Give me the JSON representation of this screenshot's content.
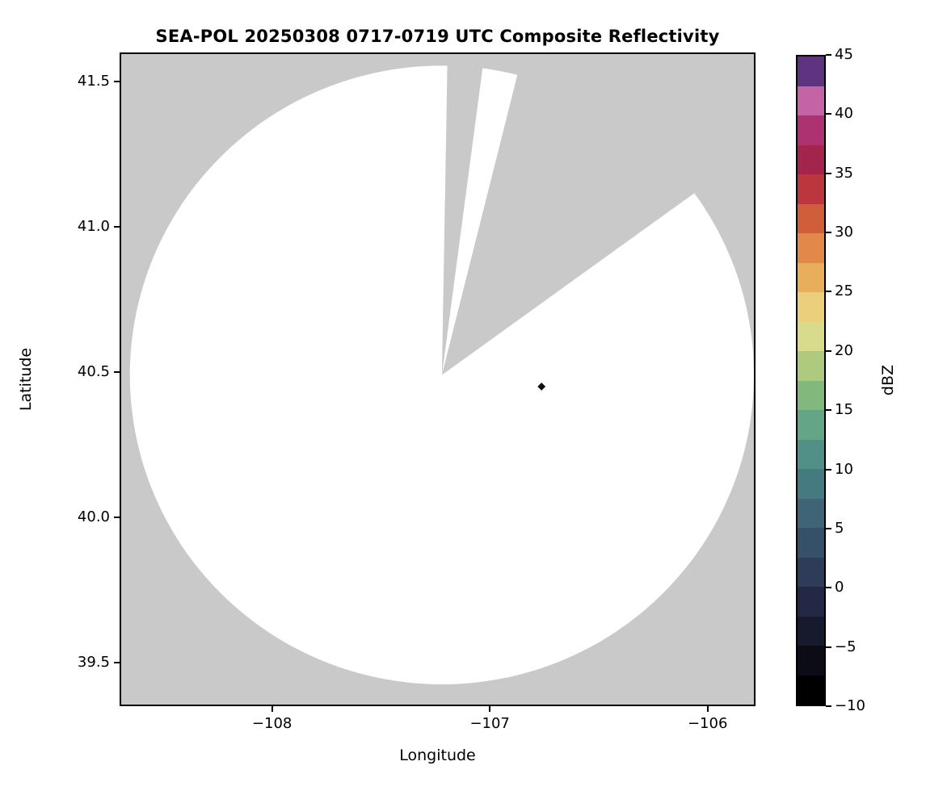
{
  "chart_data": {
    "type": "radar_ppi_map",
    "title": "SEA-POL 20250308 0717-0719 UTC Composite Reflectivity",
    "xlabel": "Longitude",
    "ylabel": "Latitude",
    "xlim": [
      -108.7,
      -105.78
    ],
    "ylim": [
      39.35,
      41.6
    ],
    "xticks": [
      -108,
      -107,
      -106
    ],
    "xtick_labels": [
      "−108",
      "−107",
      "−106"
    ],
    "yticks": [
      39.5,
      40.0,
      40.5,
      41.0,
      41.5
    ],
    "ytick_labels": [
      "39.5",
      "40.0",
      "40.5",
      "41.0",
      "41.5"
    ],
    "grid": false,
    "background_nodata_color": "#c9c9c9",
    "coverage": {
      "description": "white circular radar coverage area with two gray beam-blocked sectors toward the north and northeast",
      "center_lon": -107.22,
      "center_lat": 40.49,
      "radius_deg_lon": 1.44,
      "radius_deg_lat": 1.07,
      "fill_color": "#ffffff",
      "blocked_sectors_az_deg": [
        [
          1,
          7.5
        ],
        [
          14,
          54
        ]
      ]
    },
    "echoes": [
      {
        "lon": -106.76,
        "lat": 40.45,
        "color": "#10101a",
        "shape": "small-diamond"
      }
    ],
    "colorbar": {
      "label": "dBZ",
      "min": -10,
      "max": 45,
      "ticks": [
        -10,
        -5,
        0,
        5,
        10,
        15,
        20,
        25,
        30,
        35,
        40,
        45
      ],
      "tick_labels": [
        "−10",
        "−5",
        "0",
        "5",
        "10",
        "15",
        "20",
        "25",
        "30",
        "35",
        "40",
        "45"
      ],
      "band_colors_bottom_to_top": [
        "#000000",
        "#0c0c16",
        "#171a2c",
        "#232944",
        "#2e3c59",
        "#375069",
        "#3e6476",
        "#457a80",
        "#509086",
        "#63a585",
        "#83b87d",
        "#adca7e",
        "#d8da8c",
        "#eccf7c",
        "#e8ae5c",
        "#e18948",
        "#d05e3b",
        "#bc363e",
        "#a3244d",
        "#ad3272",
        "#c464a5",
        "#5e3380"
      ]
    }
  }
}
